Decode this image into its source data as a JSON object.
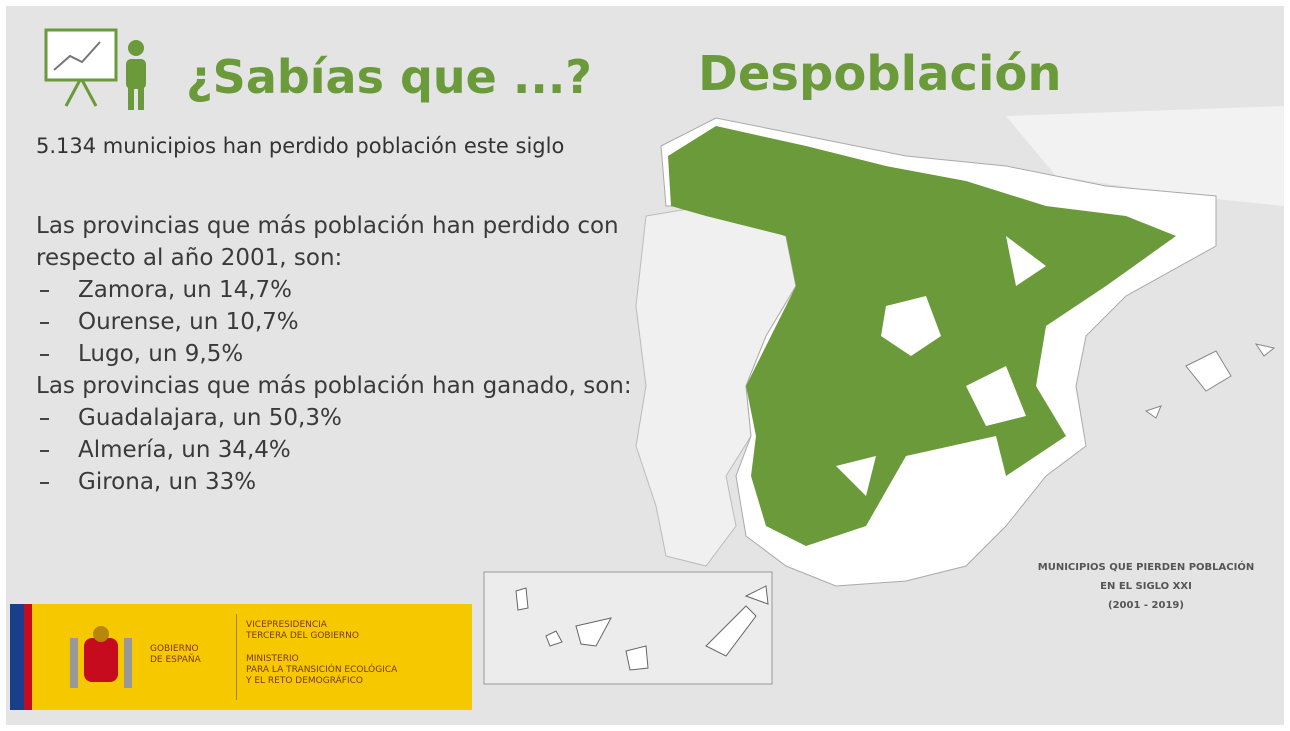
{
  "header": {
    "question": "¿Sabías que ...?",
    "title": "Despoblación"
  },
  "intro": "5.134 municipios han perdido población este siglo",
  "lost": {
    "heading": "Las provincias que más población han perdido con respecto al año 2001, son:",
    "items": [
      "Zamora, un 14,7%",
      "Ourense, un 10,7%",
      "Lugo, un 9,5%"
    ]
  },
  "gained": {
    "heading": "Las provincias que más población han ganado, son:",
    "items": [
      "Guadalajara, un 50,3%",
      "Almería, un 34,4%",
      "Girona, un 33%"
    ]
  },
  "map": {
    "caption": [
      "MUNICIPIOS QUE PIERDEN POBLACIÓN",
      "EN EL SIGLO XXI",
      "(2001 - 2019)"
    ]
  },
  "logo": {
    "government": [
      "GOBIERNO",
      "DE ESPAÑA"
    ],
    "ministry": [
      "VICEPRESIDENCIA",
      "TERCERA DEL GOBIERNO",
      "MINISTERIO",
      "PARA LA TRANSICIÓN ECOLÓGICA",
      "Y EL RETO DEMOGRÁFICO"
    ]
  }
}
